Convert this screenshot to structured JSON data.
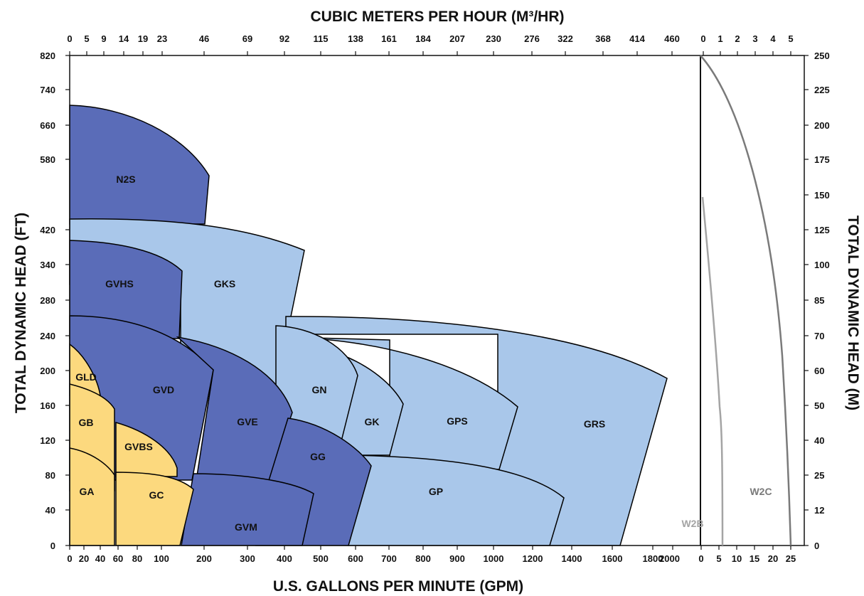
{
  "chart_data": {
    "type": "area",
    "title": "CUBIC METERS PER HOUR (M³/HR)",
    "xlabel": "U.S. GALLONS PER MINUTE (GPM)",
    "ylabel": "TOTAL DYNAMIC HEAD (FT)",
    "ylabel_right": "TOTAL DYNAMIC HEAD (M)",
    "x_bottom_ticks": [
      "0",
      "20",
      "40",
      "60",
      "80",
      "100",
      "200",
      "300",
      "400",
      "500",
      "600",
      "700",
      "800",
      "900",
      "1000",
      "1200",
      "1400",
      "1600",
      "1800",
      "2000"
    ],
    "x_top_ticks": [
      "0",
      "5",
      "9",
      "14",
      "19",
      "23",
      "46",
      "69",
      "92",
      "115",
      "138",
      "161",
      "184",
      "207",
      "230",
      "276",
      "322",
      "368",
      "414",
      "460"
    ],
    "y_left_ticks": [
      "0",
      "40",
      "80",
      "120",
      "160",
      "200",
      "240",
      "280",
      "340",
      "420",
      "580",
      "660",
      "740",
      "820"
    ],
    "y_right_ticks": [
      "0",
      "12",
      "25",
      "40",
      "50",
      "60",
      "70",
      "85",
      "100",
      "125",
      "150",
      "175",
      "200",
      "225",
      "250"
    ],
    "inset_top_ticks": [
      "0",
      "1",
      "2",
      "3",
      "4",
      "5"
    ],
    "inset_bottom_ticks": [
      "0",
      "5",
      "10",
      "15",
      "20",
      "25"
    ],
    "colors": {
      "yellow": "#fcd97e",
      "dark_blue": "#5a6cb8",
      "light_blue": "#a9c7ea",
      "outline": "#000000",
      "inset_curve_light": "#a4a4a4",
      "inset_curve_dark": "#7a7a7a"
    },
    "regions": [
      {
        "name": "N2S",
        "color": "dark_blue",
        "x_max_gpm": 220,
        "head_ft": [
          420,
          705
        ]
      },
      {
        "name": "GKS",
        "color": "light_blue",
        "x_max_gpm": 425,
        "head_ft": [
          180,
          435
        ]
      },
      {
        "name": "GVHS",
        "color": "dark_blue",
        "x_max_gpm": 185,
        "head_ft": [
          235,
          390
        ]
      },
      {
        "name": "GRS",
        "color": "light_blue",
        "x_max_gpm": 2000,
        "head_ft": [
          0,
          250
        ]
      },
      {
        "name": "GPS",
        "color": "light_blue",
        "x_max_gpm": 1170,
        "head_ft": [
          85,
          240
        ]
      },
      {
        "name": "GK",
        "color": "light_blue",
        "x_max_gpm": 750,
        "head_ft": [
          100,
          220
        ]
      },
      {
        "name": "GN",
        "color": "light_blue",
        "x_max_gpm": 620,
        "head_ft": [
          115,
          245
        ]
      },
      {
        "name": "GP",
        "color": "light_blue",
        "x_max_gpm": 1420,
        "head_ft": [
          0,
          105
        ]
      },
      {
        "name": "GVD",
        "color": "dark_blue",
        "x_max_gpm": 235,
        "head_ft": [
          75,
          260
        ]
      },
      {
        "name": "GVE",
        "color": "dark_blue",
        "x_max_gpm": 425,
        "head_ft": [
          70,
          235
        ]
      },
      {
        "name": "GG",
        "color": "dark_blue",
        "x_max_gpm": 640,
        "head_ft": [
          0,
          145
        ]
      },
      {
        "name": "GVM",
        "color": "dark_blue",
        "x_max_gpm": 590,
        "head_ft": [
          0,
          80
        ]
      },
      {
        "name": "GLD",
        "color": "yellow",
        "x_max_gpm": 50,
        "head_ft": [
          170,
          230
        ]
      },
      {
        "name": "GB",
        "color": "yellow",
        "x_max_gpm": 60,
        "head_ft": [
          110,
          185
        ]
      },
      {
        "name": "GVBS",
        "color": "yellow",
        "x_max_gpm": 180,
        "head_ft": [
          85,
          140
        ]
      },
      {
        "name": "GA",
        "color": "yellow",
        "x_max_gpm": 60,
        "head_ft": [
          0,
          110
        ]
      },
      {
        "name": "GC",
        "color": "yellow",
        "x_max_gpm": 200,
        "head_ft": [
          0,
          105
        ]
      }
    ],
    "inset_curves": [
      {
        "name": "W2B",
        "color": "inset_curve_light",
        "x_max_gpm": 6.5,
        "head_m": [
          0,
          150
        ]
      },
      {
        "name": "W2C",
        "color": "inset_curve_dark",
        "x_max_gpm": 25,
        "head_m": [
          0,
          250
        ]
      }
    ],
    "grid": false,
    "legend": "none"
  }
}
